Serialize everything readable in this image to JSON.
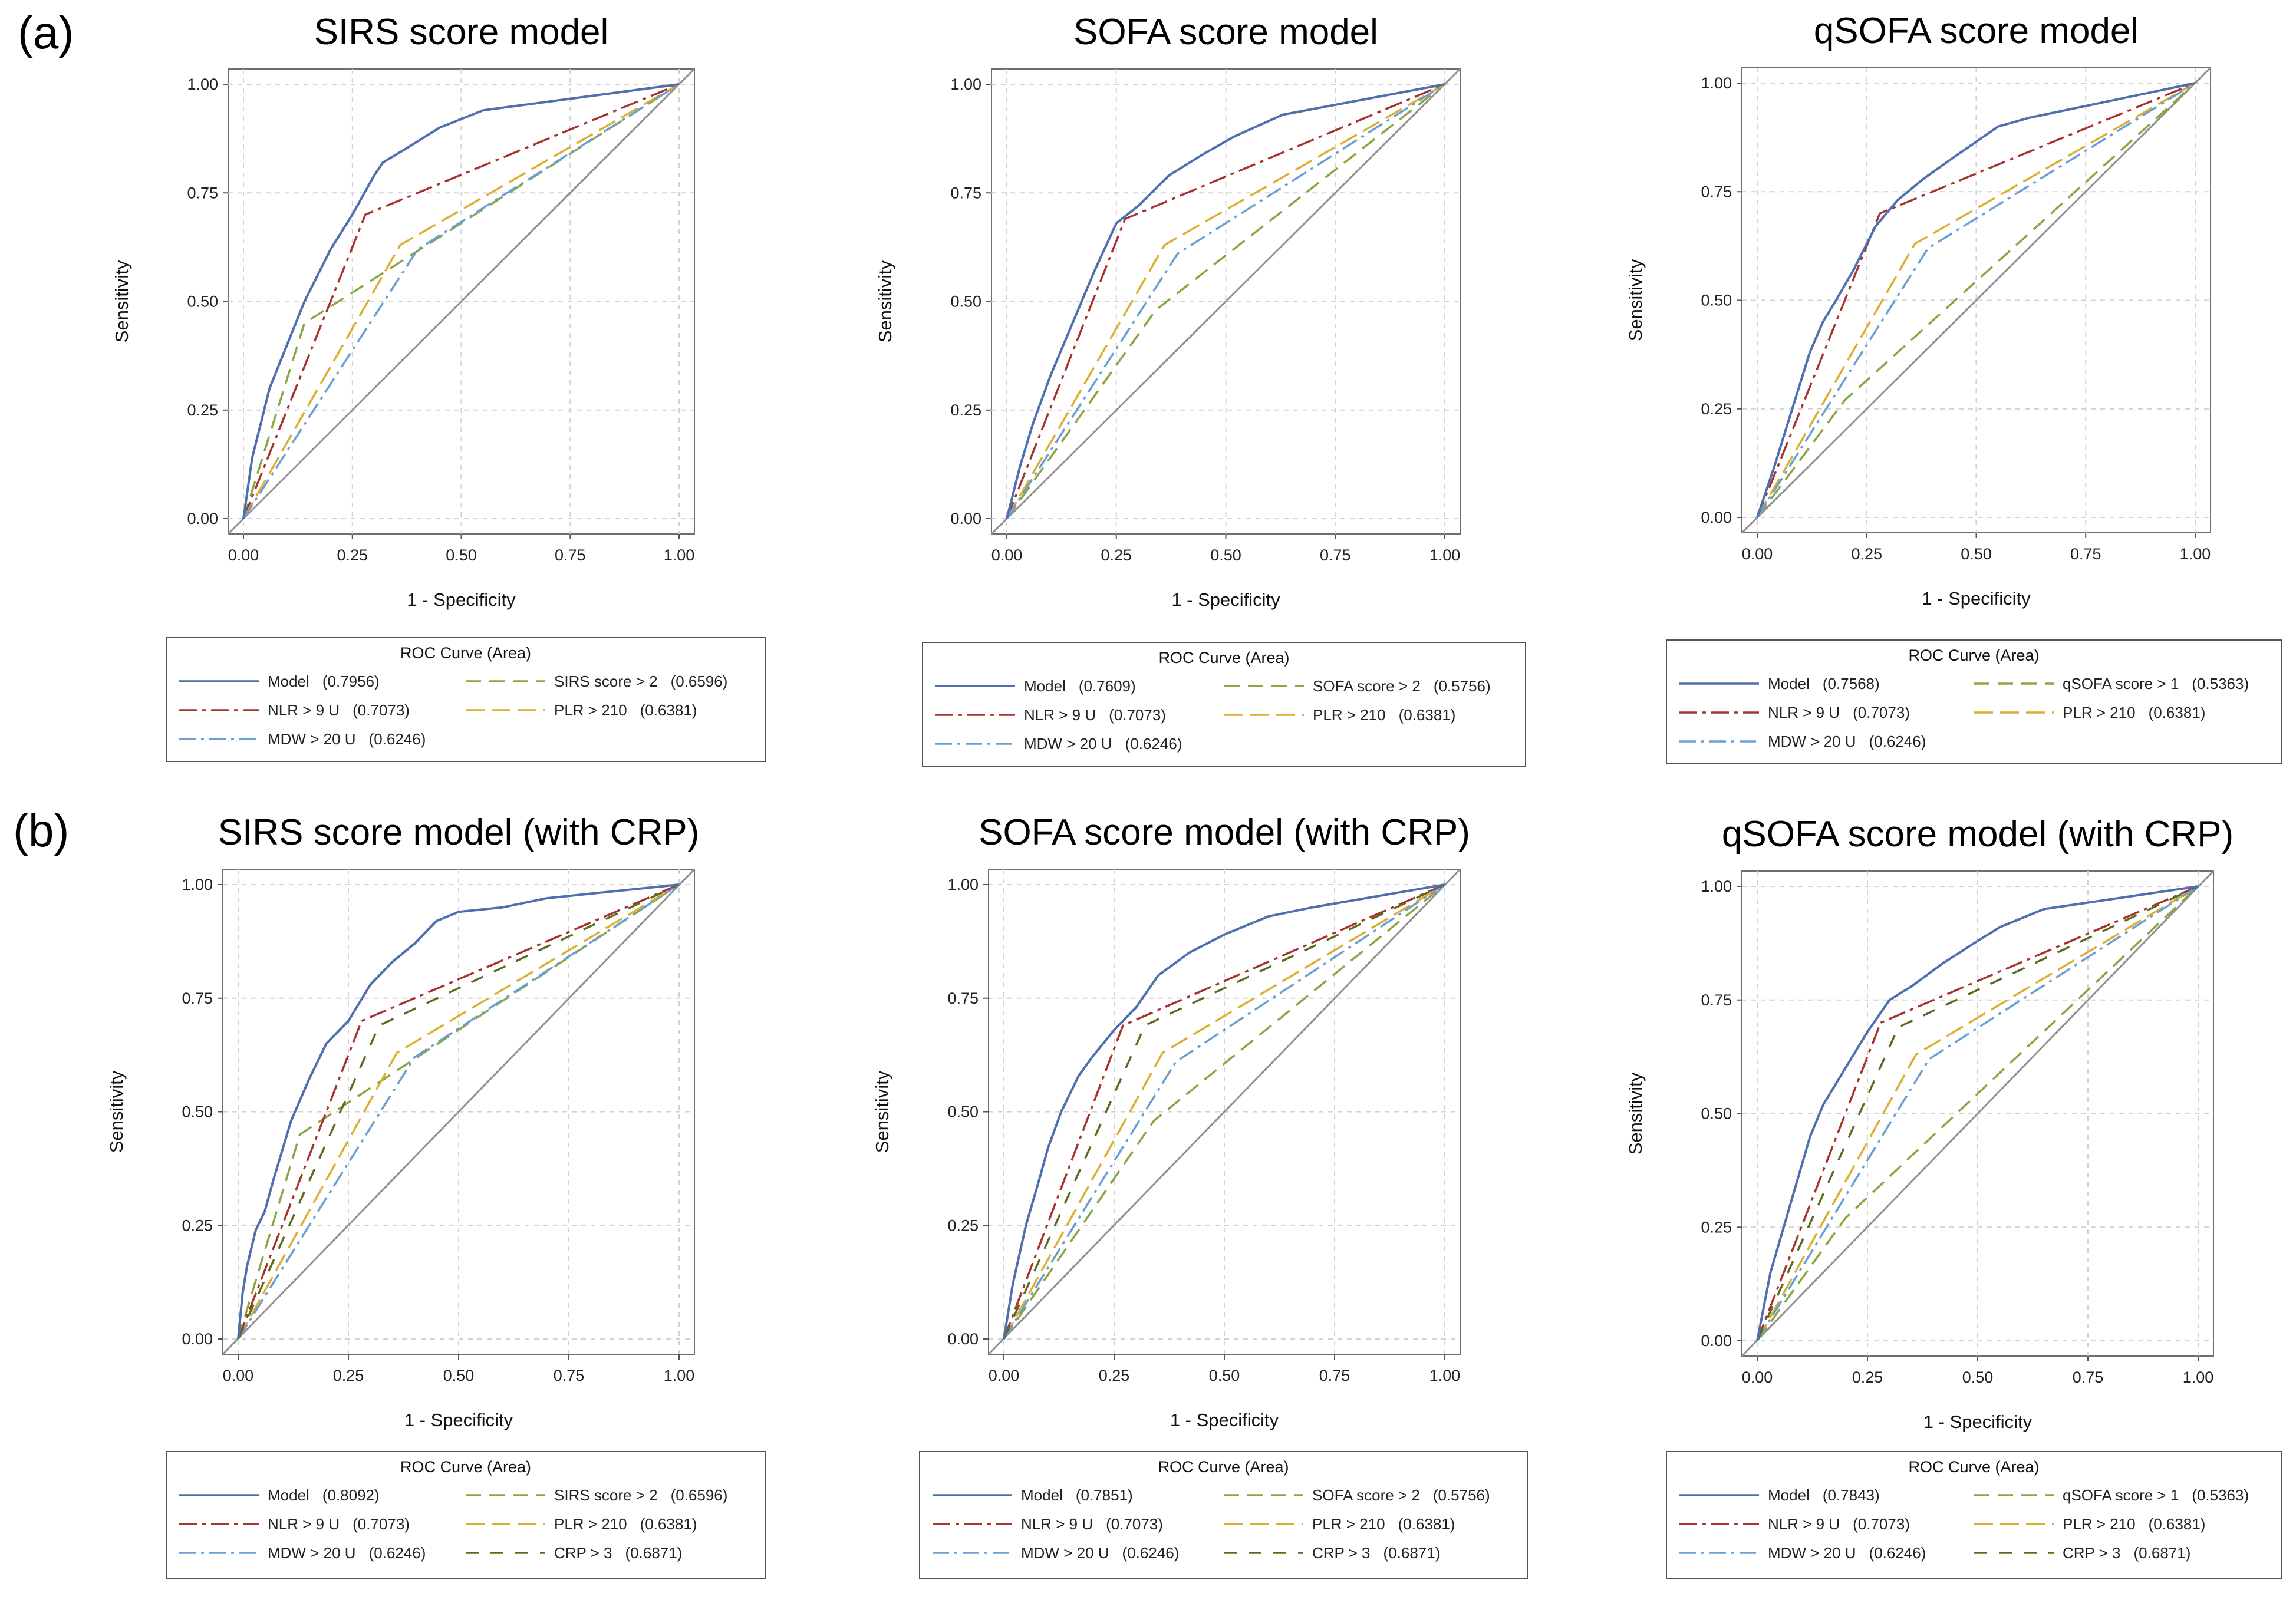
{
  "panel_labels": [
    "(a)",
    "(b)"
  ],
  "colors": {
    "model": "#4f6fae",
    "nlr": "#a8322e",
    "score": "#8ba541",
    "plr": "#dcae31",
    "mdw": "#6a9fd3",
    "crp": "#5f6a21",
    "diagonal": "#909090",
    "grid": "#d2d2d2"
  },
  "chart_data": [
    {
      "type": "line",
      "panel": "(a)",
      "title": "SIRS score model",
      "xlabel": "1 - Specificity",
      "ylabel": "Sensitivity",
      "xlim": [
        0,
        1
      ],
      "ylim": [
        0,
        1
      ],
      "xticks": [
        "0.00",
        "0.25",
        "0.50",
        "0.75",
        "1.00"
      ],
      "yticks": [
        "0.00",
        "0.25",
        "0.50",
        "0.75",
        "1.00"
      ],
      "grid": true,
      "legend_title": "ROC Curve (Area)",
      "legend_position": "bottom",
      "series": [
        {
          "key": "model",
          "name": "Model",
          "area": "(0.7956)",
          "x": [
            0,
            0.01,
            0.02,
            0.04,
            0.06,
            0.08,
            0.1,
            0.14,
            0.2,
            0.25,
            0.3,
            0.32,
            0.37,
            0.45,
            0.55,
            1
          ],
          "y": [
            0,
            0.07,
            0.14,
            0.22,
            0.3,
            0.35,
            0.4,
            0.5,
            0.62,
            0.7,
            0.79,
            0.82,
            0.85,
            0.9,
            0.94,
            1
          ]
        },
        {
          "key": "score",
          "name": "SIRS score > 2",
          "area": "(0.6596)",
          "x": [
            0,
            0.14,
            1
          ],
          "y": [
            0,
            0.45,
            1
          ]
        },
        {
          "key": "nlr",
          "name": "NLR > 9 U",
          "area": "(0.7073)",
          "x": [
            0,
            0.28,
            1
          ],
          "y": [
            0,
            0.7,
            1
          ]
        },
        {
          "key": "plr",
          "name": "PLR > 210",
          "area": "(0.6381)",
          "x": [
            0,
            0.36,
            1
          ],
          "y": [
            0,
            0.63,
            1
          ]
        },
        {
          "key": "mdw",
          "name": "MDW > 20 U",
          "area": "(0.6246)",
          "x": [
            0,
            0.4,
            1
          ],
          "y": [
            0,
            0.62,
            1
          ]
        }
      ]
    },
    {
      "type": "line",
      "panel": "(a)",
      "title": "SOFA score model",
      "xlabel": "1 - Specificity",
      "ylabel": "Sensitivity",
      "xlim": [
        0,
        1
      ],
      "ylim": [
        0,
        1
      ],
      "xticks": [
        "0.00",
        "0.25",
        "0.50",
        "0.75",
        "1.00"
      ],
      "yticks": [
        "0.00",
        "0.25",
        "0.50",
        "0.75",
        "1.00"
      ],
      "grid": true,
      "legend_title": "ROC Curve (Area)",
      "legend_position": "bottom",
      "series": [
        {
          "key": "model",
          "name": "Model",
          "area": "(0.7609)",
          "x": [
            0,
            0.03,
            0.06,
            0.1,
            0.15,
            0.2,
            0.25,
            0.3,
            0.37,
            0.45,
            0.52,
            0.63,
            1
          ],
          "y": [
            0,
            0.12,
            0.22,
            0.33,
            0.45,
            0.57,
            0.68,
            0.72,
            0.79,
            0.84,
            0.88,
            0.93,
            1
          ]
        },
        {
          "key": "score",
          "name": "SOFA score > 2",
          "area": "(0.5756)",
          "x": [
            0,
            0.34,
            1
          ],
          "y": [
            0,
            0.48,
            1
          ]
        },
        {
          "key": "nlr",
          "name": "NLR > 9 U",
          "area": "(0.7073)",
          "x": [
            0,
            0.27,
            1
          ],
          "y": [
            0,
            0.69,
            1
          ]
        },
        {
          "key": "plr",
          "name": "PLR > 210",
          "area": "(0.6381)",
          "x": [
            0,
            0.36,
            1
          ],
          "y": [
            0,
            0.63,
            1
          ]
        },
        {
          "key": "mdw",
          "name": "MDW > 20 U",
          "area": "(0.6246)",
          "x": [
            0,
            0.39,
            1
          ],
          "y": [
            0,
            0.61,
            1
          ]
        }
      ]
    },
    {
      "type": "line",
      "panel": "(a)",
      "title": "qSOFA score model",
      "xlabel": "1 - Specificity",
      "ylabel": "Sensitivity",
      "xlim": [
        0,
        1
      ],
      "ylim": [
        0,
        1
      ],
      "xticks": [
        "0.00",
        "0.25",
        "0.50",
        "0.75",
        "1.00"
      ],
      "yticks": [
        "0.00",
        "0.25",
        "0.50",
        "0.75",
        "1.00"
      ],
      "grid": true,
      "legend_title": "ROC Curve (Area)",
      "legend_position": "bottom",
      "series": [
        {
          "key": "model",
          "name": "Model",
          "area": "(0.7568)",
          "x": [
            0,
            0.04,
            0.08,
            0.12,
            0.15,
            0.18,
            0.22,
            0.27,
            0.32,
            0.38,
            0.45,
            0.55,
            0.62,
            1
          ],
          "y": [
            0,
            0.12,
            0.25,
            0.38,
            0.45,
            0.5,
            0.57,
            0.67,
            0.73,
            0.78,
            0.83,
            0.9,
            0.92,
            1
          ]
        },
        {
          "key": "score",
          "name": "qSOFA score > 1",
          "area": "(0.5363)",
          "x": [
            0,
            0.2,
            1
          ],
          "y": [
            0,
            0.27,
            1
          ]
        },
        {
          "key": "nlr",
          "name": "NLR > 9 U",
          "area": "(0.7073)",
          "x": [
            0,
            0.28,
            1
          ],
          "y": [
            0,
            0.7,
            1
          ]
        },
        {
          "key": "plr",
          "name": "PLR > 210",
          "area": "(0.6381)",
          "x": [
            0,
            0.36,
            1
          ],
          "y": [
            0,
            0.63,
            1
          ]
        },
        {
          "key": "mdw",
          "name": "MDW > 20 U",
          "area": "(0.6246)",
          "x": [
            0,
            0.39,
            1
          ],
          "y": [
            0,
            0.62,
            1
          ]
        }
      ]
    },
    {
      "type": "line",
      "panel": "(b)",
      "title": "SIRS score model (with CRP)",
      "xlabel": "1 - Specificity",
      "ylabel": "Sensitivity",
      "xlim": [
        0,
        1
      ],
      "ylim": [
        0,
        1
      ],
      "xticks": [
        "0.00",
        "0.25",
        "0.50",
        "0.75",
        "1.00"
      ],
      "yticks": [
        "0.00",
        "0.25",
        "0.50",
        "0.75",
        "1.00"
      ],
      "grid": true,
      "legend_title": "ROC Curve (Area)",
      "legend_position": "bottom",
      "series": [
        {
          "key": "model",
          "name": "Model",
          "area": "(0.8092)",
          "x": [
            0,
            0.01,
            0.02,
            0.04,
            0.06,
            0.08,
            0.12,
            0.16,
            0.2,
            0.25,
            0.3,
            0.35,
            0.4,
            0.45,
            0.5,
            0.6,
            0.7,
            1
          ],
          "y": [
            0,
            0.1,
            0.16,
            0.24,
            0.28,
            0.35,
            0.48,
            0.57,
            0.65,
            0.7,
            0.78,
            0.83,
            0.87,
            0.92,
            0.94,
            0.95,
            0.97,
            1
          ]
        },
        {
          "key": "score",
          "name": "SIRS score > 2",
          "area": "(0.6596)",
          "x": [
            0,
            0.14,
            1
          ],
          "y": [
            0,
            0.45,
            1
          ]
        },
        {
          "key": "nlr",
          "name": "NLR > 9 U",
          "area": "(0.7073)",
          "x": [
            0,
            0.28,
            1
          ],
          "y": [
            0,
            0.7,
            1
          ]
        },
        {
          "key": "plr",
          "name": "PLR > 210",
          "area": "(0.6381)",
          "x": [
            0,
            0.36,
            1
          ],
          "y": [
            0,
            0.63,
            1
          ]
        },
        {
          "key": "mdw",
          "name": "MDW > 20 U",
          "area": "(0.6246)",
          "x": [
            0,
            0.4,
            1
          ],
          "y": [
            0,
            0.62,
            1
          ]
        },
        {
          "key": "crp",
          "name": "CRP > 3",
          "area": "(0.6871)",
          "x": [
            0,
            0.32,
            1
          ],
          "y": [
            0,
            0.69,
            1
          ]
        }
      ]
    },
    {
      "type": "line",
      "panel": "(b)",
      "title": "SOFA score model (with CRP)",
      "xlabel": "1 - Specificity",
      "ylabel": "Sensitivity",
      "xlim": [
        0,
        1
      ],
      "ylim": [
        0,
        1
      ],
      "xticks": [
        "0.00",
        "0.25",
        "0.50",
        "0.75",
        "1.00"
      ],
      "yticks": [
        "0.00",
        "0.25",
        "0.50",
        "0.75",
        "1.00"
      ],
      "grid": true,
      "legend_title": "ROC Curve (Area)",
      "legend_position": "bottom",
      "series": [
        {
          "key": "model",
          "name": "Model",
          "area": "(0.7851)",
          "x": [
            0,
            0.02,
            0.05,
            0.08,
            0.1,
            0.13,
            0.17,
            0.2,
            0.25,
            0.3,
            0.35,
            0.42,
            0.5,
            0.6,
            0.7,
            1
          ],
          "y": [
            0,
            0.12,
            0.25,
            0.35,
            0.42,
            0.5,
            0.58,
            0.62,
            0.68,
            0.73,
            0.8,
            0.85,
            0.89,
            0.93,
            0.95,
            1
          ]
        },
        {
          "key": "score",
          "name": "SOFA score > 2",
          "area": "(0.5756)",
          "x": [
            0,
            0.34,
            1
          ],
          "y": [
            0,
            0.48,
            1
          ]
        },
        {
          "key": "nlr",
          "name": "NLR > 9 U",
          "area": "(0.7073)",
          "x": [
            0,
            0.27,
            1
          ],
          "y": [
            0,
            0.69,
            1
          ]
        },
        {
          "key": "plr",
          "name": "PLR > 210",
          "area": "(0.6381)",
          "x": [
            0,
            0.36,
            1
          ],
          "y": [
            0,
            0.63,
            1
          ]
        },
        {
          "key": "mdw",
          "name": "MDW > 20 U",
          "area": "(0.6246)",
          "x": [
            0,
            0.39,
            1
          ],
          "y": [
            0,
            0.61,
            1
          ]
        },
        {
          "key": "crp",
          "name": "CRP > 3",
          "area": "(0.6871)",
          "x": [
            0,
            0.32,
            1
          ],
          "y": [
            0,
            0.69,
            1
          ]
        }
      ]
    },
    {
      "type": "line",
      "panel": "(b)",
      "title": "qSOFA score model (with CRP)",
      "xlabel": "1 - Specificity",
      "ylabel": "Sensitivity",
      "xlim": [
        0,
        1
      ],
      "ylim": [
        0,
        1
      ],
      "xticks": [
        "0.00",
        "0.25",
        "0.50",
        "0.75",
        "1.00"
      ],
      "yticks": [
        "0.00",
        "0.25",
        "0.50",
        "0.75",
        "1.00"
      ],
      "grid": true,
      "legend_title": "ROC Curve (Area)",
      "legend_position": "bottom",
      "series": [
        {
          "key": "model",
          "name": "Model",
          "area": "(0.7843)",
          "x": [
            0,
            0.03,
            0.06,
            0.09,
            0.12,
            0.15,
            0.2,
            0.25,
            0.3,
            0.35,
            0.42,
            0.5,
            0.55,
            0.65,
            1
          ],
          "y": [
            0,
            0.15,
            0.25,
            0.35,
            0.45,
            0.52,
            0.6,
            0.68,
            0.75,
            0.78,
            0.83,
            0.88,
            0.91,
            0.95,
            1
          ]
        },
        {
          "key": "score",
          "name": "qSOFA score > 1",
          "area": "(0.5363)",
          "x": [
            0,
            0.2,
            1
          ],
          "y": [
            0,
            0.27,
            1
          ]
        },
        {
          "key": "nlr",
          "name": "NLR > 9 U",
          "area": "(0.7073)",
          "x": [
            0,
            0.28,
            1
          ],
          "y": [
            0,
            0.7,
            1
          ]
        },
        {
          "key": "plr",
          "name": "PLR > 210",
          "area": "(0.6381)",
          "x": [
            0,
            0.36,
            1
          ],
          "y": [
            0,
            0.63,
            1
          ]
        },
        {
          "key": "mdw",
          "name": "MDW > 20 U",
          "area": "(0.6246)",
          "x": [
            0,
            0.39,
            1
          ],
          "y": [
            0,
            0.62,
            1
          ]
        },
        {
          "key": "crp",
          "name": "CRP > 3",
          "area": "(0.6871)",
          "x": [
            0,
            0.32,
            1
          ],
          "y": [
            0,
            0.69,
            1
          ]
        }
      ]
    }
  ]
}
